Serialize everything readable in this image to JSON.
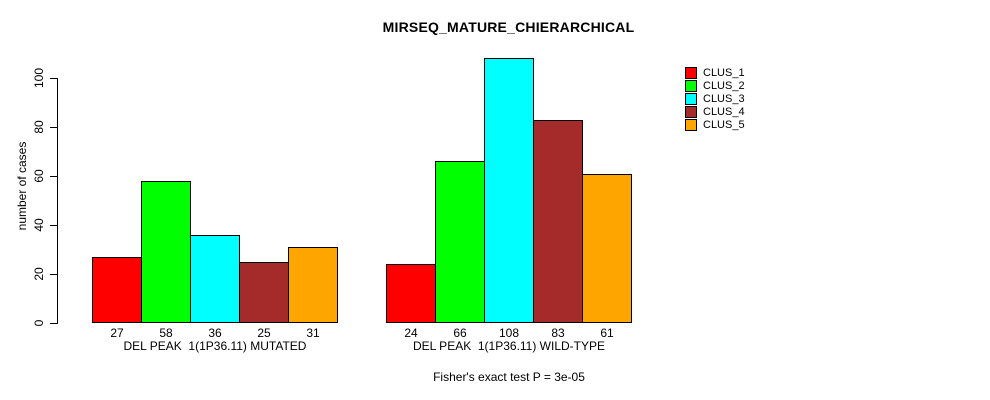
{
  "figure": {
    "title": "MIRSEQ_MATURE_CHIERARCHICAL",
    "footnote": "Fisher's exact test P = 3e-05"
  },
  "chart_data": {
    "type": "bar",
    "title": "MIRSEQ_MATURE_CHIERARCHICAL",
    "xlabel": "",
    "ylabel": "number of cases",
    "ylim": [
      0,
      100
    ],
    "yticks": [
      0,
      20,
      40,
      60,
      80,
      100
    ],
    "grid": false,
    "legend_position": "top-right",
    "bar_value_labels": true,
    "categories": [
      "DEL PEAK  1(1P36.11) MUTATED",
      "DEL PEAK  1(1P36.11) WILD-TYPE"
    ],
    "series": [
      {
        "name": "CLUS_1",
        "color": "#ff0000",
        "values": [
          27,
          24
        ]
      },
      {
        "name": "CLUS_2",
        "color": "#00ff00",
        "values": [
          58,
          66
        ]
      },
      {
        "name": "CLUS_3",
        "color": "#00ffff",
        "values": [
          36,
          108
        ]
      },
      {
        "name": "CLUS_4",
        "color": "#a52a2a",
        "values": [
          25,
          83
        ]
      },
      {
        "name": "CLUS_5",
        "color": "#ffa500",
        "values": [
          31,
          61
        ]
      }
    ],
    "annotation": "Fisher's exact test P = 3e-05",
    "colors": {
      "background": "#ffffff",
      "text": "#000000",
      "bar_border": "#000000"
    }
  }
}
